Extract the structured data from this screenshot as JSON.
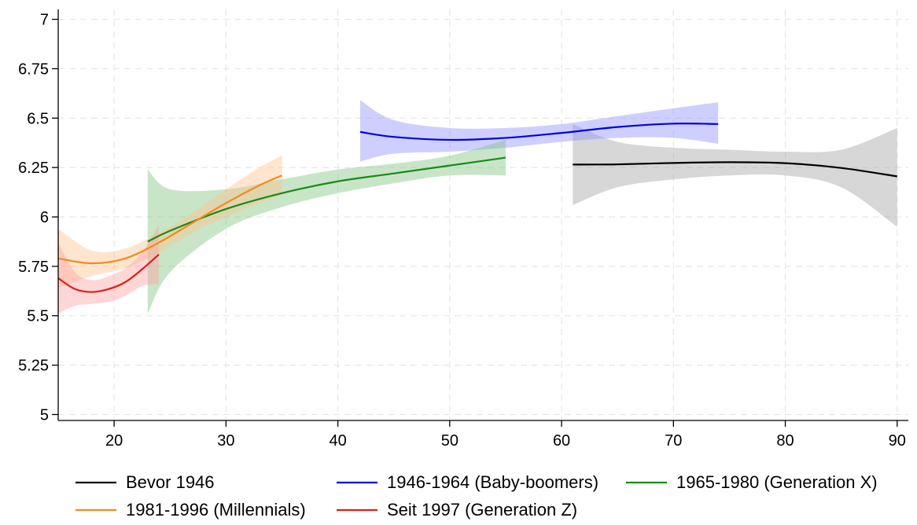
{
  "chart_data": {
    "type": "line",
    "title": "",
    "xlabel": "",
    "ylabel": "",
    "xlim": [
      15,
      91
    ],
    "ylim": [
      4.97,
      7.05
    ],
    "x_ticks": [
      20,
      30,
      40,
      50,
      60,
      70,
      80,
      90
    ],
    "y_ticks": [
      5,
      5.25,
      5.5,
      5.75,
      6,
      6.25,
      6.5,
      6.75,
      7
    ],
    "y_tick_labels": [
      "5",
      "5.25",
      "5.5",
      "5.75",
      "6",
      "6.25",
      "6.5",
      "6.75",
      "7"
    ],
    "x_tick_labels": [
      "20",
      "30",
      "40",
      "50",
      "60",
      "70",
      "80",
      "90"
    ],
    "grid": true,
    "legend_position": "bottom",
    "confidence_bands": true,
    "series": [
      {
        "name": "Bevor 1946",
        "color": "#000000",
        "band_color": "#a0a0a0",
        "x": [
          61,
          65,
          70,
          75,
          80,
          85,
          90
        ],
        "y": [
          6.265,
          6.266,
          6.273,
          6.277,
          6.272,
          6.248,
          6.205
        ],
        "lower": [
          6.06,
          6.15,
          6.19,
          6.21,
          6.21,
          6.15,
          5.95
        ],
        "upper": [
          6.47,
          6.38,
          6.35,
          6.34,
          6.33,
          6.34,
          6.45
        ]
      },
      {
        "name": "1946-1964 (Baby-boomers)",
        "color": "#0000e6",
        "band_color": "#8c8cff",
        "x": [
          42,
          45,
          50,
          55,
          60,
          65,
          70,
          74
        ],
        "y": [
          6.43,
          6.405,
          6.39,
          6.4,
          6.425,
          6.455,
          6.472,
          6.47
        ],
        "lower": [
          6.28,
          6.32,
          6.33,
          6.35,
          6.38,
          6.4,
          6.4,
          6.37
        ],
        "upper": [
          6.59,
          6.49,
          6.45,
          6.45,
          6.47,
          6.51,
          6.55,
          6.58
        ]
      },
      {
        "name": "1965-1980 (Generation X)",
        "color": "#1a8a1a",
        "band_color": "#7cc27c",
        "x": [
          23,
          25,
          30,
          35,
          40,
          45,
          50,
          55
        ],
        "y": [
          5.875,
          5.93,
          6.04,
          6.12,
          6.18,
          6.22,
          6.26,
          6.3
        ],
        "lower": [
          5.51,
          5.72,
          5.94,
          6.05,
          6.12,
          6.17,
          6.21,
          6.21
        ],
        "upper": [
          6.24,
          6.14,
          6.14,
          6.19,
          6.24,
          6.27,
          6.31,
          6.39
        ]
      },
      {
        "name": "1981-1996 (Millennials)",
        "color": "#f28a1c",
        "band_color": "#ffc08a",
        "x": [
          15,
          18,
          21,
          24,
          27,
          30,
          33,
          35
        ],
        "y": [
          5.79,
          5.765,
          5.79,
          5.87,
          5.97,
          6.07,
          6.16,
          6.21
        ],
        "lower": [
          5.64,
          5.7,
          5.74,
          5.82,
          5.92,
          6.0,
          6.07,
          6.11
        ],
        "upper": [
          5.94,
          5.83,
          5.84,
          5.92,
          6.02,
          6.14,
          6.25,
          6.31
        ]
      },
      {
        "name": "Seit 1997 (Generation Z)",
        "color": "#e61a1a",
        "band_color": "#ffa0a0",
        "x": [
          15,
          16.5,
          18,
          19.5,
          21,
          22.5,
          24
        ],
        "y": [
          5.69,
          5.635,
          5.62,
          5.635,
          5.67,
          5.735,
          5.81
        ],
        "lower": [
          5.51,
          5.55,
          5.56,
          5.57,
          5.6,
          5.65,
          5.66
        ],
        "upper": [
          5.87,
          5.72,
          5.68,
          5.7,
          5.74,
          5.82,
          5.96
        ]
      }
    ]
  }
}
